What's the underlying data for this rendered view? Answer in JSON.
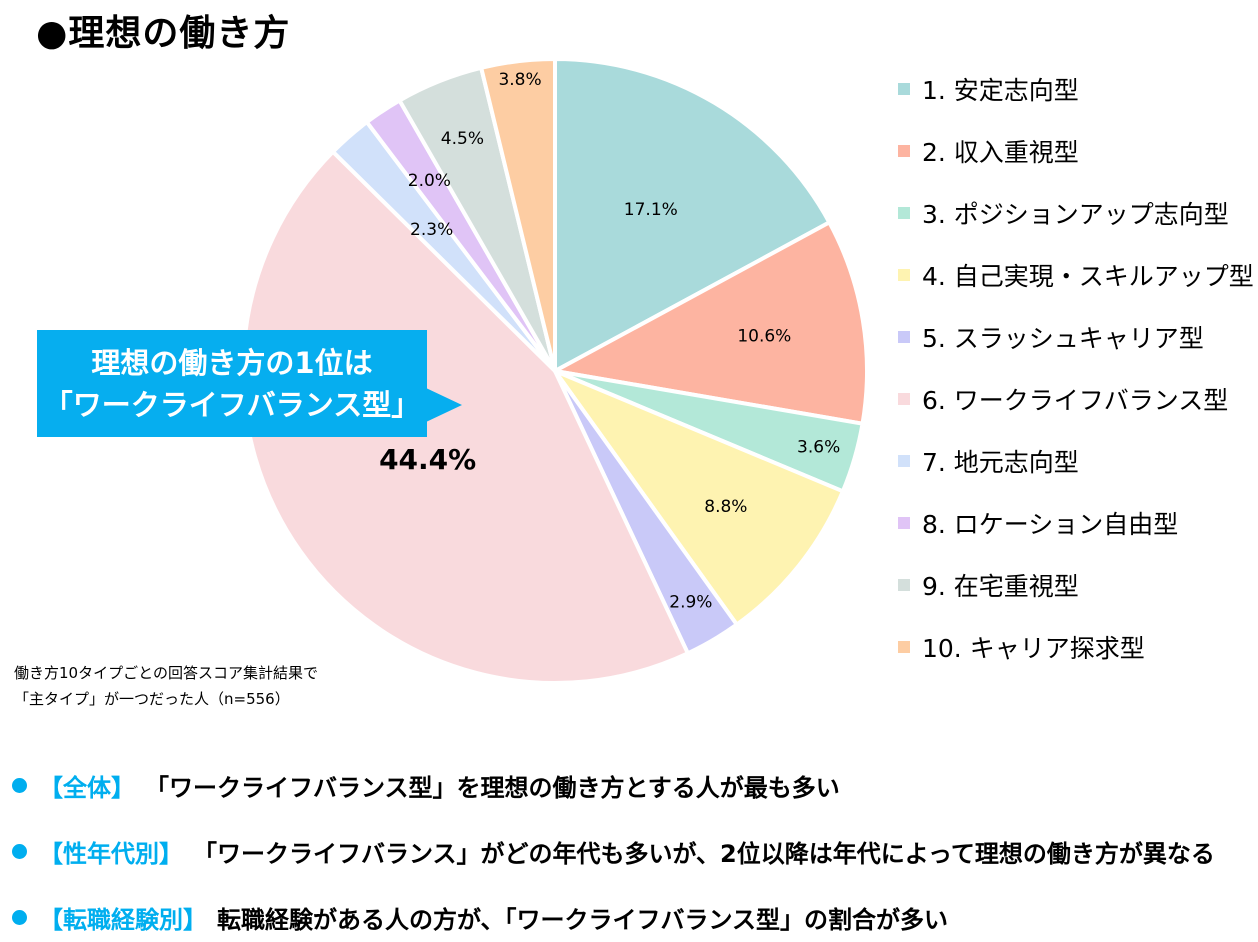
{
  "header": {
    "title": "●理想の働き方"
  },
  "chart_data": {
    "type": "pie",
    "categories": [
      "1. 安定志向型",
      "2. 収入重視型",
      "3. ポジションアップ志向型",
      "4. 自己実現・スキルアップ型",
      "5. スラッシュキャリア型",
      "6. ワークライフバランス型",
      "7. 地元志向型",
      "8. ロケーション自由型",
      "9. 在宅重視型",
      "10. キャリア探求型"
    ],
    "values": [
      17.1,
      10.6,
      3.6,
      8.8,
      2.9,
      44.4,
      2.3,
      2.0,
      4.5,
      3.8
    ],
    "labels": [
      "17.1%",
      "10.6%",
      "3.6%",
      "8.8%",
      "2.9%",
      "44.4%",
      "2.3%",
      "2.0%",
      "4.5%",
      "3.8%"
    ],
    "colors": [
      "#a9dadb",
      "#fdb4a1",
      "#b3e8d8",
      "#fef3b1",
      "#c9c9f8",
      "#f9dadd",
      "#d1e1fa",
      "#e0c4f6",
      "#d4dfdc",
      "#fdcda3"
    ],
    "legend_position": "right",
    "title": "",
    "xlabel": "",
    "ylabel": ""
  },
  "callout": {
    "line1": "理想の働き方の1位は",
    "line2": "「ワークライフバランス型」"
  },
  "note": {
    "line1": "働き方10タイプごとの回答スコア集計結果で",
    "line2": "「主タイプ」が一つだった人（n=556）"
  },
  "bullets": [
    {
      "tag": "【全体】",
      "text": "「ワークライフバランス型」を理想の働き方とする人が最も多い"
    },
    {
      "tag": "【性年代別】",
      "text": "「ワークライフバランス」がどの年代も多いが、2位以降は年代によって理想の働き方が異なる"
    },
    {
      "tag": "【転職経験別】",
      "text": "転職経験がある人の方が、「ワークライフバランス型」の割合が多い"
    }
  ],
  "colors": {
    "accent": "#00aeef",
    "callout_bg": "#06aeef"
  }
}
